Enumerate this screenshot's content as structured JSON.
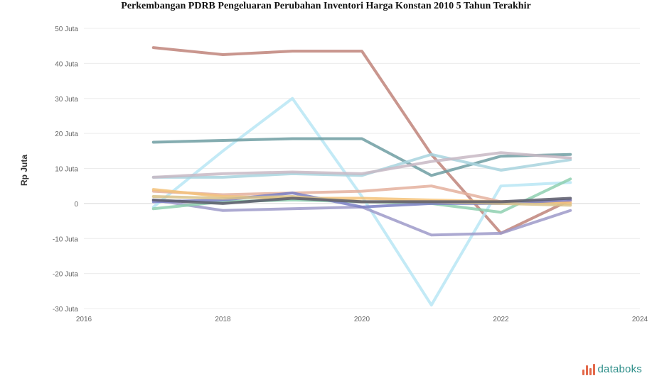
{
  "title": "Perkembangan PDRB Pengeluaran Perubahan Inventori Harga Konstan 2010 5 Tahun Terakhir",
  "brand": {
    "name": "databoks",
    "icon": "databoks-logo-icon",
    "color": "#2f8f8a",
    "accent": "#e3694a"
  },
  "chart_data": {
    "type": "line",
    "title": "Perkembangan PDRB Pengeluaran Perubahan Inventori Harga Konstan 2010 5 Tahun Terakhir",
    "xlabel": "",
    "ylabel": "Rp Juta",
    "x": [
      "2017",
      "2018",
      "2019",
      "2020",
      "2021",
      "2022",
      "2023"
    ],
    "x_tick_labels": [
      "2016",
      "2018",
      "2020",
      "2022",
      "2024"
    ],
    "x_tick_positions": [
      "2016",
      "2018",
      "2020",
      "2022",
      "2024"
    ],
    "xlim": [
      2016,
      2024
    ],
    "y_ticks": [
      50000,
      40000,
      30000,
      20000,
      10000,
      0,
      -10000,
      -20000,
      -30000
    ],
    "y_tick_labels": [
      "50 Juta",
      "40 Juta",
      "30 Juta",
      "20 Juta",
      "10 Juta",
      "0",
      "-10 Juta",
      "-20 Juta",
      "-30 Juta"
    ],
    "ylim": [
      -30000,
      50000
    ],
    "grid": true,
    "legend": "none",
    "series": [
      {
        "color": "#c0847a",
        "values": [
          44500,
          42500,
          43500,
          43500,
          14000,
          -8500,
          1000
        ]
      },
      {
        "color": "#b8e6f5",
        "values": [
          -1000,
          15000,
          30000,
          2000,
          -29000,
          5000,
          6000
        ]
      },
      {
        "color": "#6f9ea2",
        "values": [
          17500,
          18000,
          18500,
          18500,
          8000,
          13500,
          14000
        ]
      },
      {
        "color": "#a8d4de",
        "values": [
          7500,
          7500,
          8500,
          8000,
          14000,
          9500,
          12500
        ]
      },
      {
        "color": "#c8b8c4",
        "values": [
          7500,
          8500,
          9000,
          8500,
          12000,
          14500,
          13000
        ]
      },
      {
        "color": "#9e9ac9",
        "values": [
          1000,
          -2000,
          -1500,
          -1000,
          -9000,
          -8500,
          -2000
        ]
      },
      {
        "color": "#e4b09e",
        "values": [
          3500,
          2500,
          3000,
          3500,
          5000,
          500,
          500
        ]
      },
      {
        "color": "#f3c27a",
        "values": [
          4000,
          2000,
          1500,
          1500,
          1000,
          500,
          0
        ]
      },
      {
        "color": "#8fd0b0",
        "values": [
          -1500,
          500,
          1000,
          500,
          0,
          -2500,
          7000
        ]
      },
      {
        "color": "#7a7fc4",
        "values": [
          500,
          1000,
          3000,
          -1000,
          0,
          0,
          1000
        ]
      },
      {
        "color": "#d8c28a",
        "values": [
          2000,
          1500,
          2000,
          500,
          500,
          0,
          -500
        ]
      },
      {
        "color": "#5a5a6a",
        "values": [
          1000,
          0,
          1500,
          500,
          500,
          500,
          1500
        ]
      }
    ]
  }
}
